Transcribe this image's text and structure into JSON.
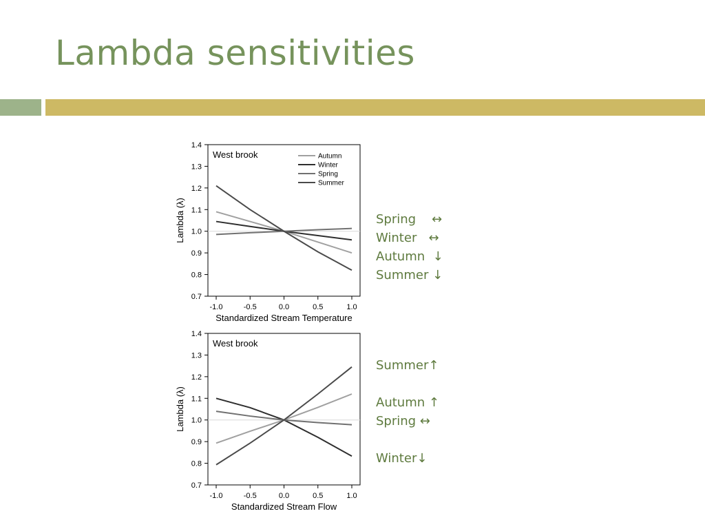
{
  "slide": {
    "title": "Lambda sensitivities",
    "accent_colors": {
      "title": "#76935c",
      "bar_left": "#9db38a",
      "bar_right": "#cdb964",
      "notes": "#5e7a3e"
    }
  },
  "chart_data": [
    {
      "type": "line",
      "title": "West brook",
      "xlabel": "Standardized Stream Temperature",
      "ylabel": "Lambda (λ)",
      "xlim": [
        -1.0,
        1.0
      ],
      "ylim": [
        0.7,
        1.4
      ],
      "x_ticks": [
        -1.0,
        -0.5,
        0.0,
        0.5,
        1.0
      ],
      "x_tick_labels": [
        "-1.0",
        "-0.5",
        "0.0",
        "0.5",
        "1.0"
      ],
      "y_ticks": [
        0.7,
        0.8,
        0.9,
        1.0,
        1.1,
        1.2,
        1.3,
        1.4
      ],
      "y_tick_labels": [
        "0.7",
        "0.8",
        "0.9",
        "1.0",
        "1.1",
        "1.2",
        "1.3",
        "1.4"
      ],
      "reference_line": 1.0,
      "legend_position": "top-right",
      "grid": false,
      "x": [
        -1.0,
        -0.5,
        0.0,
        0.5,
        1.0
      ],
      "series": [
        {
          "name": "Autumn",
          "color": "#a0a0a0",
          "values": [
            1.09,
            1.045,
            1.0,
            0.95,
            0.9
          ]
        },
        {
          "name": "Winter",
          "color": "#2e2e2e",
          "values": [
            1.045,
            1.022,
            1.0,
            0.98,
            0.96
          ]
        },
        {
          "name": "Spring",
          "color": "#707070",
          "values": [
            0.985,
            0.993,
            1.0,
            1.007,
            1.013
          ]
        },
        {
          "name": "Summer",
          "color": "#4a4a4a",
          "values": [
            1.21,
            1.1,
            1.0,
            0.905,
            0.82
          ]
        }
      ]
    },
    {
      "type": "line",
      "title": "West brook",
      "xlabel": "Standardized Stream Flow",
      "ylabel": "Lambda (λ)",
      "xlim": [
        -1.0,
        1.0
      ],
      "ylim": [
        0.7,
        1.4
      ],
      "x_ticks": [
        -1.0,
        -0.5,
        0.0,
        0.5,
        1.0
      ],
      "x_tick_labels": [
        "-1.0",
        "-0.5",
        "0.0",
        "0.5",
        "1.0"
      ],
      "y_ticks": [
        0.7,
        0.8,
        0.9,
        1.0,
        1.1,
        1.2,
        1.3,
        1.4
      ],
      "y_tick_labels": [
        "0.7",
        "0.8",
        "0.9",
        "1.0",
        "1.1",
        "1.2",
        "1.3",
        "1.4"
      ],
      "reference_line": 1.0,
      "grid": false,
      "x": [
        -1.0,
        -0.5,
        0.0,
        0.5,
        1.0
      ],
      "series": [
        {
          "name": "Autumn",
          "color": "#a0a0a0",
          "values": [
            0.893,
            0.948,
            1.0,
            1.058,
            1.12
          ]
        },
        {
          "name": "Winter",
          "color": "#2e2e2e",
          "values": [
            1.1,
            1.057,
            1.0,
            0.92,
            0.833
          ]
        },
        {
          "name": "Spring",
          "color": "#707070",
          "values": [
            1.04,
            1.018,
            1.0,
            0.988,
            0.978
          ]
        },
        {
          "name": "Summer",
          "color": "#4a4a4a",
          "values": [
            0.793,
            0.893,
            1.0,
            1.12,
            1.245
          ]
        }
      ]
    }
  ],
  "notes_top": [
    "Spring    ↔",
    "Winter   ↔",
    "Autumn  ↓",
    "Summer ↓"
  ],
  "notes_bottom": [
    "Summer↑",
    "",
    "Autumn ↑",
    "Spring ↔",
    "",
    "Winter↓"
  ]
}
